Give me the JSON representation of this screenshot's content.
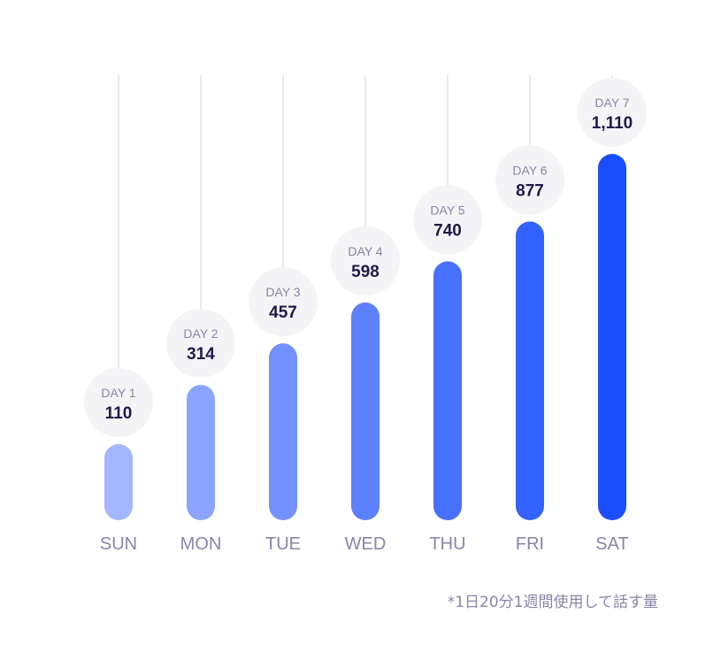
{
  "chart_data": {
    "type": "bar",
    "categories": [
      "SUN",
      "MON",
      "TUE",
      "WED",
      "THU",
      "FRI",
      "SAT"
    ],
    "day_labels": [
      "DAY 1",
      "DAY 2",
      "DAY 3",
      "DAY 4",
      "DAY 5",
      "DAY 6",
      "DAY 7"
    ],
    "values": [
      110,
      314,
      457,
      598,
      740,
      877,
      1110
    ],
    "value_labels": [
      "110",
      "314",
      "457",
      "598",
      "740",
      "877",
      "1,110"
    ],
    "colors": [
      "#a3b6ff",
      "#8aa4ff",
      "#7390ff",
      "#5c80ff",
      "#4870ff",
      "#3262ff",
      "#1a4dff"
    ],
    "footnote": "*1日20分1週間使用して話す量",
    "grid": false
  }
}
